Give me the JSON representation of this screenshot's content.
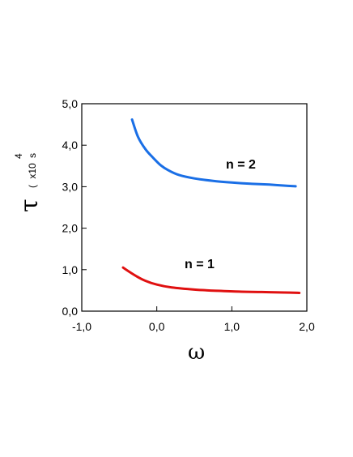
{
  "chart_data": {
    "type": "line",
    "xlabel": "ω",
    "ylabel": "τ",
    "ylabel_unit": {
      "open": "(",
      "mult": "x10",
      "exp": "4",
      "unit": "s"
    },
    "xlim": [
      -1.0,
      2.0
    ],
    "ylim": [
      0.0,
      5.0
    ],
    "x_ticks": [
      -1.0,
      0.0,
      1.0,
      2.0
    ],
    "x_tick_labels": [
      "-1,0",
      "0,0",
      "1,0",
      "2,0"
    ],
    "y_ticks": [
      0.0,
      1.0,
      2.0,
      3.0,
      4.0,
      5.0
    ],
    "y_tick_labels": [
      "0,0",
      "1,0",
      "2,0",
      "3,0",
      "4,0",
      "5,0"
    ],
    "grid": false,
    "series": [
      {
        "name": "n = 2",
        "color": "#1a6fe6",
        "x": [
          -0.33,
          -0.25,
          -0.15,
          -0.05,
          0.05,
          0.15,
          0.3,
          0.5,
          0.75,
          1.0,
          1.25,
          1.5,
          1.75,
          1.85
        ],
        "y": [
          4.62,
          4.2,
          3.9,
          3.7,
          3.52,
          3.4,
          3.28,
          3.2,
          3.14,
          3.1,
          3.07,
          3.05,
          3.02,
          3.01
        ]
      },
      {
        "name": "n = 1",
        "color": "#e01010",
        "x": [
          -0.45,
          -0.35,
          -0.25,
          -0.15,
          0.0,
          0.2,
          0.5,
          0.8,
          1.1,
          1.4,
          1.7,
          1.9
        ],
        "y": [
          1.05,
          0.93,
          0.82,
          0.73,
          0.64,
          0.57,
          0.52,
          0.49,
          0.47,
          0.46,
          0.45,
          0.44
        ]
      }
    ]
  }
}
